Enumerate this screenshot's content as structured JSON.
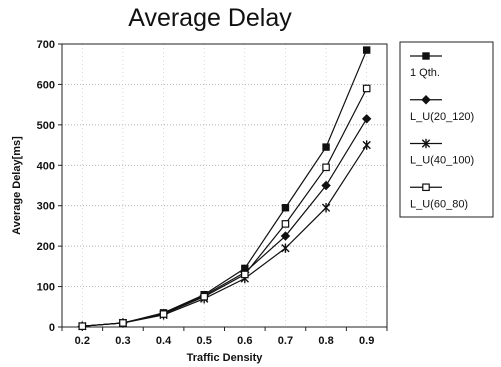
{
  "chart_data": {
    "type": "line",
    "title": "Average Delay",
    "xlabel": "Traffic Density",
    "ylabel": "Average Delay[ms]",
    "x": [
      0.2,
      0.3,
      0.4,
      0.5,
      0.6,
      0.7,
      0.8,
      0.9
    ],
    "x_tick_labels": [
      "0.2",
      "0.3",
      "0.4",
      "0.5",
      "0.6",
      "0.7",
      "0.8",
      "0.9"
    ],
    "ylim": [
      0,
      700
    ],
    "y_ticks": [
      0,
      100,
      200,
      300,
      400,
      500,
      600,
      700
    ],
    "grid": true,
    "legend_position": "right",
    "series": [
      {
        "name": "1 Qth.",
        "marker": "filled-square",
        "values": [
          2,
          10,
          35,
          80,
          145,
          295,
          445,
          685
        ]
      },
      {
        "name": "L_U(20_120)",
        "marker": "filled-diamond",
        "values": [
          2,
          10,
          33,
          78,
          135,
          225,
          350,
          515
        ]
      },
      {
        "name": "L_U(40_100)",
        "marker": "star",
        "values": [
          2,
          10,
          30,
          70,
          120,
          195,
          295,
          450
        ]
      },
      {
        "name": "L_U(60_80)",
        "marker": "open-square",
        "values": [
          2,
          10,
          32,
          75,
          130,
          255,
          395,
          590
        ]
      }
    ]
  }
}
